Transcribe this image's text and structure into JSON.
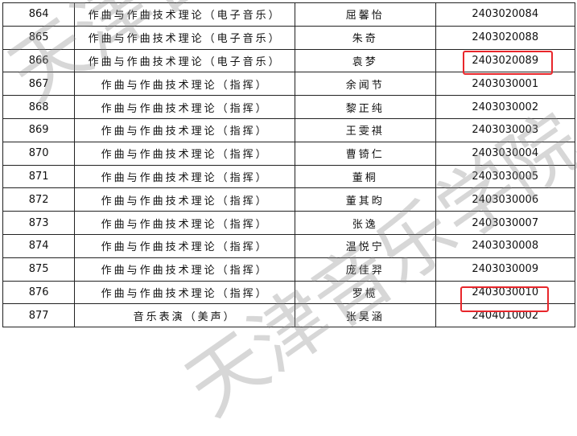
{
  "watermark": {
    "text": "天津音乐学院",
    "color": "#8c8c8c"
  },
  "highlight_color": "#e8262b",
  "rows": [
    {
      "no": "864",
      "major": "作曲与作曲技术理论（电子音乐）",
      "name": "屈馨怡",
      "id": "2403020084",
      "highlighted": false
    },
    {
      "no": "865",
      "major": "作曲与作曲技术理论（电子音乐）",
      "name": "朱奇",
      "id": "2403020088",
      "highlighted": false
    },
    {
      "no": "866",
      "major": "作曲与作曲技术理论（电子音乐）",
      "name": "袁梦",
      "id": "2403020089",
      "highlighted": true
    },
    {
      "no": "867",
      "major": "作曲与作曲技术理论（指挥）",
      "name": "余闻节",
      "id": "2403030001",
      "highlighted": false
    },
    {
      "no": "868",
      "major": "作曲与作曲技术理论（指挥）",
      "name": "黎正纯",
      "id": "2403030002",
      "highlighted": false
    },
    {
      "no": "869",
      "major": "作曲与作曲技术理论（指挥）",
      "name": "王雯祺",
      "id": "2403030003",
      "highlighted": false
    },
    {
      "no": "870",
      "major": "作曲与作曲技术理论（指挥）",
      "name": "曹锜仁",
      "id": "2403030004",
      "highlighted": false
    },
    {
      "no": "871",
      "major": "作曲与作曲技术理论（指挥）",
      "name": "董桐",
      "id": "2403030005",
      "highlighted": false
    },
    {
      "no": "872",
      "major": "作曲与作曲技术理论（指挥）",
      "name": "董其昀",
      "id": "2403030006",
      "highlighted": false
    },
    {
      "no": "873",
      "major": "作曲与作曲技术理论（指挥）",
      "name": "张逸",
      "id": "2403030007",
      "highlighted": false
    },
    {
      "no": "874",
      "major": "作曲与作曲技术理论（指挥）",
      "name": "温悦宁",
      "id": "2403030008",
      "highlighted": false
    },
    {
      "no": "875",
      "major": "作曲与作曲技术理论（指挥）",
      "name": "庞佳羿",
      "id": "2403030009",
      "highlighted": false
    },
    {
      "no": "876",
      "major": "作曲与作曲技术理论（指挥）",
      "name": "罗榄",
      "id": "2403030010",
      "highlighted": true
    },
    {
      "no": "877",
      "major": "音乐表演（美声）",
      "name": "张昊涵",
      "id": "2404010002",
      "highlighted": false
    }
  ]
}
